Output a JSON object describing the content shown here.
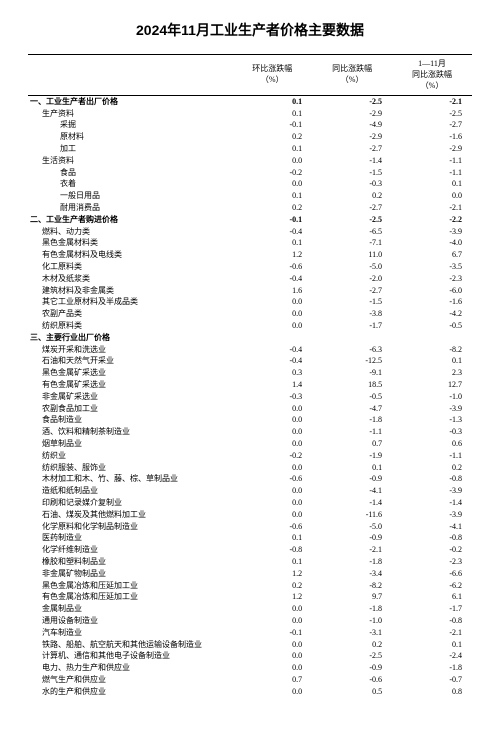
{
  "title": "2024年11月工业生产者价格主要数据",
  "columns": {
    "c1": "环比涨跌幅\n（%）",
    "c2": "同比涨跌幅\n（%）",
    "c3": "1—11月\n同比涨跌幅\n（%）"
  },
  "rows": [
    {
      "label": "一、工业生产者出厂价格",
      "v1": "0.1",
      "v2": "-2.5",
      "v3": "-2.1",
      "bold": true,
      "indent": 0
    },
    {
      "label": "生产资料",
      "v1": "0.1",
      "v2": "-2.9",
      "v3": "-2.5",
      "indent": 1
    },
    {
      "label": "采掘",
      "v1": "-0.1",
      "v2": "-4.9",
      "v3": "-2.7",
      "indent": 2
    },
    {
      "label": "原材料",
      "v1": "0.2",
      "v2": "-2.9",
      "v3": "-1.6",
      "indent": 2
    },
    {
      "label": "加工",
      "v1": "0.1",
      "v2": "-2.7",
      "v3": "-2.9",
      "indent": 2
    },
    {
      "label": "生活资料",
      "v1": "0.0",
      "v2": "-1.4",
      "v3": "-1.1",
      "indent": 1
    },
    {
      "label": "食品",
      "v1": "-0.2",
      "v2": "-1.5",
      "v3": "-1.1",
      "indent": 2
    },
    {
      "label": "衣着",
      "v1": "0.0",
      "v2": "-0.3",
      "v3": "0.1",
      "indent": 2
    },
    {
      "label": "一般日用品",
      "v1": "0.1",
      "v2": "0.2",
      "v3": "0.0",
      "indent": 2
    },
    {
      "label": "耐用消费品",
      "v1": "0.2",
      "v2": "-2.7",
      "v3": "-2.1",
      "indent": 2
    },
    {
      "label": "二、工业生产者购进价格",
      "v1": "-0.1",
      "v2": "-2.5",
      "v3": "-2.2",
      "bold": true,
      "indent": 0
    },
    {
      "label": "燃料、动力类",
      "v1": "-0.4",
      "v2": "-6.5",
      "v3": "-3.9",
      "indent": 1
    },
    {
      "label": "黑色金属材料类",
      "v1": "0.1",
      "v2": "-7.1",
      "v3": "-4.0",
      "indent": 1
    },
    {
      "label": "有色金属材料及电线类",
      "v1": "1.2",
      "v2": "11.0",
      "v3": "6.7",
      "indent": 1
    },
    {
      "label": "化工原料类",
      "v1": "-0.6",
      "v2": "-5.0",
      "v3": "-3.5",
      "indent": 1
    },
    {
      "label": "木材及纸浆类",
      "v1": "-0.4",
      "v2": "-2.0",
      "v3": "-2.3",
      "indent": 1
    },
    {
      "label": "建筑材料及非金属类",
      "v1": "1.6",
      "v2": "-2.7",
      "v3": "-6.0",
      "indent": 1
    },
    {
      "label": "其它工业原材料及半成品类",
      "v1": "0.0",
      "v2": "-1.5",
      "v3": "-1.6",
      "indent": 1
    },
    {
      "label": "农副产品类",
      "v1": "0.0",
      "v2": "-3.8",
      "v3": "-4.2",
      "indent": 1
    },
    {
      "label": "纺织原料类",
      "v1": "0.0",
      "v2": "-1.7",
      "v3": "-0.5",
      "indent": 1
    },
    {
      "label": "三、主要行业出厂价格",
      "v1": "",
      "v2": "",
      "v3": "",
      "bold": true,
      "indent": 0
    },
    {
      "label": "煤炭开采和洗选业",
      "v1": "-0.4",
      "v2": "-6.3",
      "v3": "-8.2",
      "indent": 1
    },
    {
      "label": "石油和天然气开采业",
      "v1": "-0.4",
      "v2": "-12.5",
      "v3": "0.1",
      "indent": 1
    },
    {
      "label": "黑色金属矿采选业",
      "v1": "0.3",
      "v2": "-9.1",
      "v3": "2.3",
      "indent": 1
    },
    {
      "label": "有色金属矿采选业",
      "v1": "1.4",
      "v2": "18.5",
      "v3": "12.7",
      "indent": 1
    },
    {
      "label": "非金属矿采选业",
      "v1": "-0.3",
      "v2": "-0.5",
      "v3": "-1.0",
      "indent": 1
    },
    {
      "label": "农副食品加工业",
      "v1": "0.0",
      "v2": "-4.7",
      "v3": "-3.9",
      "indent": 1
    },
    {
      "label": "食品制造业",
      "v1": "0.0",
      "v2": "-1.8",
      "v3": "-1.3",
      "indent": 1
    },
    {
      "label": "酒、饮料和精制茶制造业",
      "v1": "0.0",
      "v2": "-1.1",
      "v3": "-0.3",
      "indent": 1
    },
    {
      "label": "烟草制品业",
      "v1": "0.0",
      "v2": "0.7",
      "v3": "0.6",
      "indent": 1
    },
    {
      "label": "纺织业",
      "v1": "-0.2",
      "v2": "-1.9",
      "v3": "-1.1",
      "indent": 1
    },
    {
      "label": "纺织服装、服饰业",
      "v1": "0.0",
      "v2": "0.1",
      "v3": "0.2",
      "indent": 1
    },
    {
      "label": "木材加工和木、竹、藤、棕、草制品业",
      "v1": "-0.6",
      "v2": "-0.9",
      "v3": "-0.8",
      "indent": 1
    },
    {
      "label": "造纸和纸制品业",
      "v1": "0.0",
      "v2": "-4.1",
      "v3": "-3.9",
      "indent": 1
    },
    {
      "label": "印刷和记录媒介复制业",
      "v1": "0.0",
      "v2": "-1.4",
      "v3": "-1.4",
      "indent": 1
    },
    {
      "label": "石油、煤炭及其他燃料加工业",
      "v1": "0.0",
      "v2": "-11.6",
      "v3": "-3.9",
      "indent": 1
    },
    {
      "label": "化学原料和化学制品制造业",
      "v1": "-0.6",
      "v2": "-5.0",
      "v3": "-4.1",
      "indent": 1
    },
    {
      "label": "医药制造业",
      "v1": "0.1",
      "v2": "-0.9",
      "v3": "-0.8",
      "indent": 1
    },
    {
      "label": "化学纤维制造业",
      "v1": "-0.8",
      "v2": "-2.1",
      "v3": "-0.2",
      "indent": 1
    },
    {
      "label": "橡胶和塑料制品业",
      "v1": "0.1",
      "v2": "-1.8",
      "v3": "-2.3",
      "indent": 1
    },
    {
      "label": "非金属矿物制品业",
      "v1": "1.2",
      "v2": "-3.4",
      "v3": "-6.6",
      "indent": 1
    },
    {
      "label": "黑色金属冶炼和压延加工业",
      "v1": "0.2",
      "v2": "-8.2",
      "v3": "-6.2",
      "indent": 1
    },
    {
      "label": "有色金属冶炼和压延加工业",
      "v1": "1.2",
      "v2": "9.7",
      "v3": "6.1",
      "indent": 1
    },
    {
      "label": "金属制品业",
      "v1": "0.0",
      "v2": "-1.8",
      "v3": "-1.7",
      "indent": 1
    },
    {
      "label": "通用设备制造业",
      "v1": "0.0",
      "v2": "-1.0",
      "v3": "-0.8",
      "indent": 1
    },
    {
      "label": "汽车制造业",
      "v1": "-0.1",
      "v2": "-3.1",
      "v3": "-2.1",
      "indent": 1
    },
    {
      "label": "铁路、船舶、航空航天和其他运输设备制造业",
      "v1": "0.0",
      "v2": "0.2",
      "v3": "0.1",
      "indent": 1
    },
    {
      "label": "计算机、通信和其他电子设备制造业",
      "v1": "0.0",
      "v2": "-2.5",
      "v3": "-2.4",
      "indent": 1
    },
    {
      "label": "电力、热力生产和供应业",
      "v1": "0.0",
      "v2": "-0.9",
      "v3": "-1.8",
      "indent": 1
    },
    {
      "label": "燃气生产和供应业",
      "v1": "0.7",
      "v2": "-0.6",
      "v3": "-0.7",
      "indent": 1
    },
    {
      "label": "水的生产和供应业",
      "v1": "0.0",
      "v2": "0.5",
      "v3": "0.8",
      "indent": 1
    }
  ]
}
